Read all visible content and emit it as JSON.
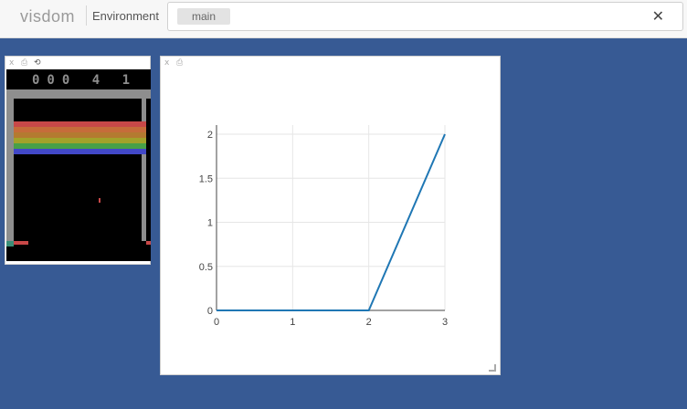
{
  "header": {
    "brand": "visdom",
    "env_label": "Environment",
    "env_selected": "main",
    "clear_icon": "close-icon",
    "clear_glyph": "✕"
  },
  "panes": {
    "image": {
      "close_glyph": "x",
      "save_glyph": "⎙",
      "redraw_glyph": "⟲"
    },
    "plot": {
      "close_glyph": "x",
      "save_glyph": "⎙"
    }
  },
  "game": {
    "score": "000 4 1",
    "bricks": [
      {
        "color": "#c84848"
      },
      {
        "color": "#c66c3a"
      },
      {
        "color": "#b47a30"
      },
      {
        "color": "#a2a22a"
      },
      {
        "color": "#48a048"
      },
      {
        "color": "#4248c8"
      }
    ]
  },
  "chart_data": {
    "type": "line",
    "x": [
      0,
      1,
      2,
      3
    ],
    "series": [
      {
        "values": [
          0,
          0,
          0,
          2
        ],
        "color": "#1f77b4"
      }
    ],
    "xlim": [
      0,
      3
    ],
    "ylim": [
      0,
      2
    ],
    "xticks": [
      "0",
      "1",
      "2",
      "3"
    ],
    "yticks": [
      "0",
      "0.5",
      "1",
      "1.5",
      "2"
    ],
    "title": "",
    "xlabel": "",
    "ylabel": "",
    "grid": true
  }
}
